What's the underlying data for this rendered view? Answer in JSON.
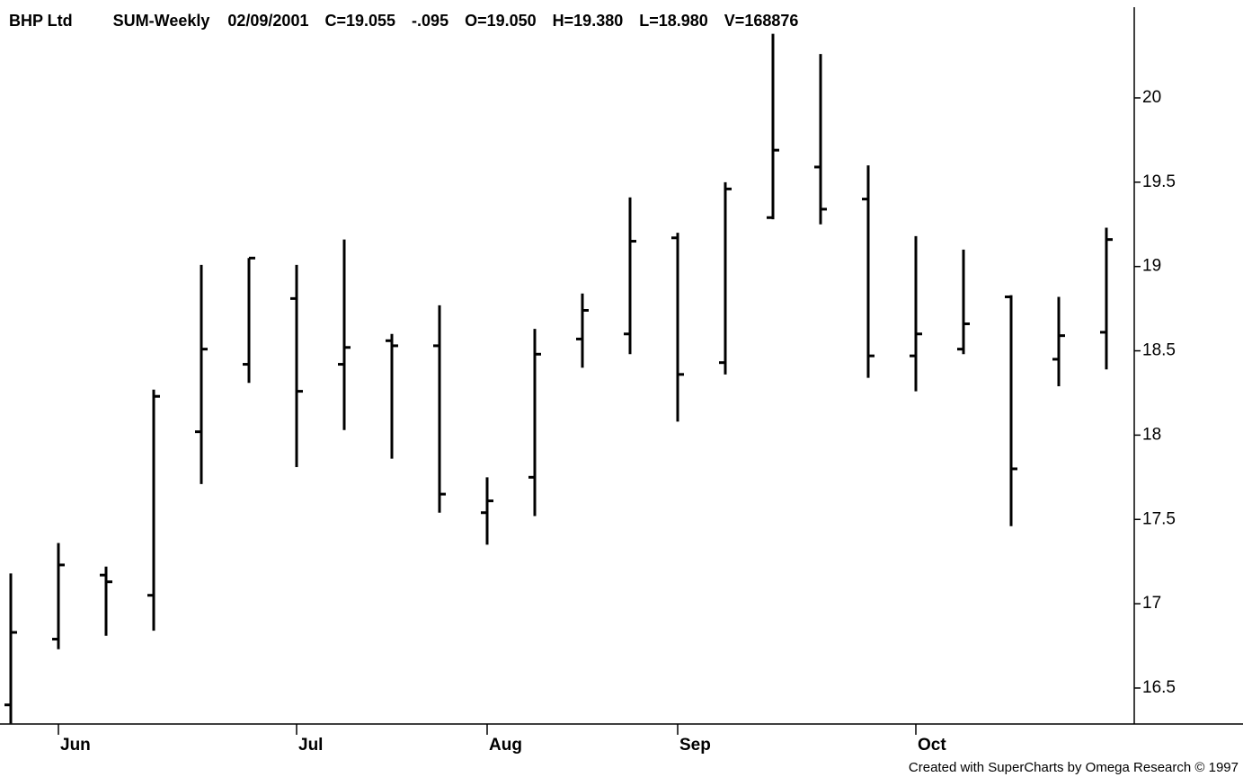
{
  "chart_data": {
    "type": "ohlc",
    "header": [
      "BHP Ltd",
      "SUM-Weekly",
      "02/09/2001",
      "C=19.055",
      "-.095",
      "O=19.050",
      "H=19.380",
      "L=18.980",
      "V=168876"
    ],
    "header_colors": [
      "#000000",
      "#000000",
      "#000000",
      "#000000",
      "#ff0000",
      "#000000",
      "#000000",
      "#000000",
      "#000000"
    ],
    "footer": "Created with SuperCharts by Omega Research © 1997",
    "categories": [
      null,
      "Jun",
      null,
      null,
      null,
      null,
      "Jul",
      null,
      null,
      null,
      "Aug",
      null,
      null,
      null,
      "Sep",
      null,
      null,
      null,
      null,
      "Oct",
      null,
      null,
      null,
      null
    ],
    "open": [
      16.4,
      16.79,
      17.17,
      17.05,
      18.02,
      18.42,
      18.81,
      18.42,
      18.56,
      18.53,
      17.54,
      17.75,
      18.57,
      18.6,
      19.17,
      18.43,
      19.29,
      19.59,
      19.4,
      18.47,
      18.51,
      18.82,
      18.45,
      18.61
    ],
    "high": [
      17.18,
      17.36,
      17.22,
      18.27,
      19.01,
      19.05,
      19.01,
      19.16,
      18.6,
      18.77,
      17.75,
      18.63,
      18.84,
      19.41,
      19.2,
      19.5,
      20.38,
      20.26,
      19.6,
      19.18,
      19.1,
      18.83,
      18.82,
      19.23
    ],
    "low": [
      16.29,
      16.73,
      16.81,
      16.84,
      17.71,
      18.31,
      17.81,
      18.03,
      17.86,
      17.54,
      17.35,
      17.52,
      18.4,
      18.48,
      18.08,
      18.36,
      19.28,
      19.25,
      18.34,
      18.26,
      18.48,
      17.46,
      18.29,
      18.39
    ],
    "close": [
      16.83,
      17.23,
      17.13,
      18.23,
      18.51,
      19.05,
      18.26,
      18.52,
      18.53,
      17.65,
      17.61,
      18.48,
      18.74,
      19.15,
      18.36,
      19.46,
      19.69,
      19.34,
      18.47,
      18.6,
      18.66,
      17.8,
      18.59,
      19.16
    ],
    "color": "#000000",
    "ylim": [
      16.3,
      20.4
    ],
    "yticks": [
      16.5,
      17,
      17.5,
      18,
      18.5,
      19,
      19.5,
      20
    ]
  }
}
